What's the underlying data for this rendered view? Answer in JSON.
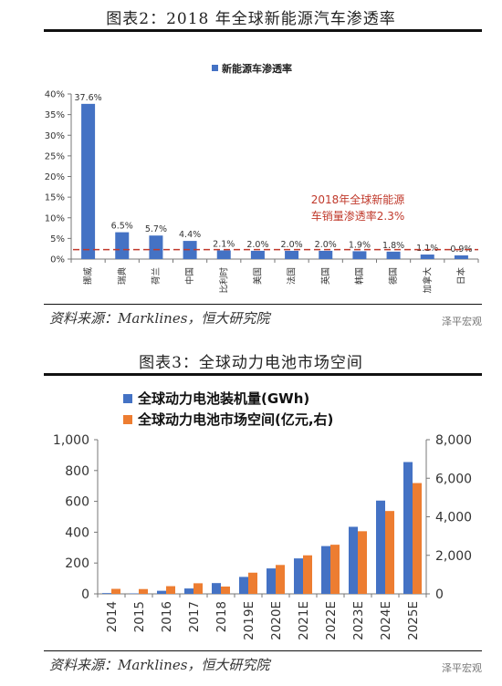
{
  "chart1": {
    "title": "图表2：2018 年全球新能源汽车渗透率",
    "legend": "新能源车渗透率",
    "annotation_line1": "2018年全球新能源",
    "annotation_line2": "车销量渗透率2.3%",
    "source": "资料来源：Marklines，恒大研究院",
    "watermark": "泽平宏观"
  },
  "chart2": {
    "title": "图表3：全球动力电池市场空间",
    "source": "资料来源：Marklines，恒大研究院",
    "watermark": "泽平宏观"
  },
  "colors": {
    "bar_blue": "#4472C4",
    "bar_orange": "#ED7D31",
    "ref_line": "#C0392B"
  },
  "chart_data": [
    {
      "type": "bar",
      "title": "图表2：2018 年全球新能源汽车渗透率",
      "categories": [
        "挪威",
        "瑞典",
        "荷兰",
        "中国",
        "比利时",
        "美国",
        "法国",
        "英国",
        "韩国",
        "德国",
        "加拿大",
        "日本"
      ],
      "series": [
        {
          "name": "新能源车渗透率",
          "values": [
            37.6,
            6.5,
            5.7,
            4.4,
            2.1,
            2.0,
            2.0,
            2.0,
            1.9,
            1.8,
            1.1,
            0.9
          ],
          "labels": [
            "37.6%",
            "6.5%",
            "5.7%",
            "4.4%",
            "2.1%",
            "2.0%",
            "2.0%",
            "2.0%",
            "1.9%",
            "1.8%",
            "1.1%",
            "0.9%"
          ]
        }
      ],
      "ylim": [
        0,
        40
      ],
      "yticks": [
        "0%",
        "5%",
        "10%",
        "15%",
        "20%",
        "25%",
        "30%",
        "35%",
        "40%"
      ],
      "reference_line": {
        "value": 2.3,
        "label": "2018年全球新能源车销量渗透率2.3%"
      },
      "legend": "top-center",
      "grid": false
    },
    {
      "type": "bar",
      "title": "图表3：全球动力电池市场空间",
      "categories": [
        "2014",
        "2015",
        "2016",
        "2017",
        "2018",
        "2019E",
        "2020E",
        "2021E",
        "2022E",
        "2023E",
        "2024E",
        "2025E"
      ],
      "series": [
        {
          "name": "全球动力电池装机量(GWh)",
          "axis": "left",
          "values": [
            5,
            3,
            20,
            35,
            70,
            110,
            165,
            230,
            310,
            435,
            605,
            855
          ]
        },
        {
          "name": "全球动力电池市场空间(亿元,右)",
          "axis": "right",
          "values": [
            260,
            250,
            400,
            550,
            380,
            1100,
            1500,
            2000,
            2550,
            3250,
            4300,
            5750
          ]
        }
      ],
      "ylim_left": [
        0,
        1000
      ],
      "ylim_right": [
        0,
        8000
      ],
      "yticks_left": [
        "0",
        "200",
        "400",
        "600",
        "800",
        "1,000"
      ],
      "yticks_right": [
        "0",
        "2,000",
        "4,000",
        "6,000",
        "8,000"
      ],
      "legend": "top-left",
      "grid": false
    }
  ]
}
